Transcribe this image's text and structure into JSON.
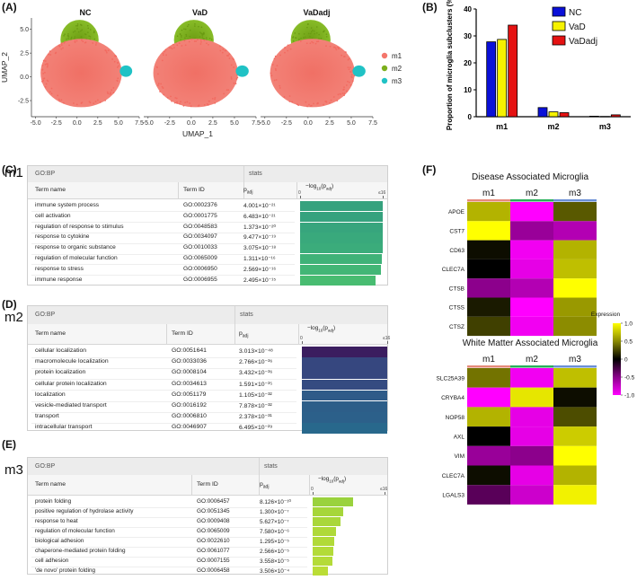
{
  "panels": {
    "A": "(A)",
    "B": "(B)",
    "C": "(C)",
    "D": "(D)",
    "E": "(E)",
    "F": "(F)"
  },
  "umap": {
    "titles": [
      "NC",
      "VaD",
      "VaDadj"
    ],
    "ylabel": "UMAP_2",
    "xlabel": "UMAP_1",
    "xticks": [
      "-5.0",
      "-2.5",
      "0.0",
      "2.5",
      "5.0",
      "7.5"
    ],
    "yticks": [
      "5.0",
      "2.5",
      "0.0",
      "-2.5"
    ],
    "legend": [
      {
        "label": "m1",
        "color": "#f4766b"
      },
      {
        "label": "m2",
        "color": "#7caf1d"
      },
      {
        "label": "m3",
        "color": "#20c2c5"
      }
    ]
  },
  "chart_data": {
    "type": "bar",
    "categories": [
      "m1",
      "m2",
      "m3"
    ],
    "series": [
      {
        "name": "NC",
        "color": "#0a10d8",
        "values": [
          27.8,
          3.4,
          0.2
        ]
      },
      {
        "name": "VaD",
        "color": "#f6f200",
        "values": [
          28.7,
          1.8,
          0.1
        ]
      },
      {
        "name": "VaDadj",
        "color": "#e51212",
        "values": [
          34.0,
          1.5,
          0.7
        ]
      }
    ],
    "ylabel": "Proportion of microglia subclusters (%)",
    "ylim": [
      0,
      40
    ],
    "yticks": [
      "0",
      "10",
      "20",
      "30",
      "40"
    ],
    "legend_position": "top-right",
    "grid": false
  },
  "gprofiler": [
    {
      "cluster": "m1",
      "source": "GO:BP",
      "stats_label": "stats",
      "col_term": "Term name",
      "col_id": "Term ID",
      "col_p": "p",
      "col_p_sub": "adj",
      "col_log": "−log",
      "col_log_sub": "10",
      "col_log_tail": "(p",
      "col_log_tail_sub": "adj",
      "col_log_end": ")",
      "axis_min": "0",
      "axis_max": "≤16",
      "axis_max_value": 16,
      "rows": [
        {
          "name": "immune system process",
          "id": "GO:0002376",
          "p": "4.001×10⁻²¹",
          "score": 16,
          "color": "#36a27e"
        },
        {
          "name": "cell activation",
          "id": "GO:0001775",
          "p": "6.483×10⁻²¹",
          "score": 16,
          "color": "#36a27e"
        },
        {
          "name": "regulation of response to stimulus",
          "id": "GO:0048583",
          "p": "1.373×10⁻²⁰",
          "score": 16,
          "color": "#37a57d"
        },
        {
          "name": "response to cytokine",
          "id": "GO:0034097",
          "p": "9.477×10⁻¹⁹",
          "score": 16,
          "color": "#39a97c"
        },
        {
          "name": "response to organic substance",
          "id": "GO:0010033",
          "p": "3.075×10⁻¹⁸",
          "score": 16,
          "color": "#3bac7b"
        },
        {
          "name": "regulation of molecular function",
          "id": "GO:0065009",
          "p": "1.311×10⁻¹⁶",
          "score": 15.88,
          "color": "#3fb278"
        },
        {
          "name": "response to stress",
          "id": "GO:0006950",
          "p": "2.569×10⁻¹⁶",
          "score": 15.59,
          "color": "#42b676"
        },
        {
          "name": "immune response",
          "id": "GO:0006955",
          "p": "2.495×10⁻¹⁵",
          "score": 14.6,
          "color": "#48bc71"
        }
      ]
    },
    {
      "cluster": "m2",
      "source": "GO:BP",
      "stats_label": "stats",
      "col_term": "Term name",
      "col_id": "Term ID",
      "col_p": "p",
      "col_p_sub": "adj",
      "col_log": "−log",
      "col_log_sub": "10",
      "col_log_tail": "(p",
      "col_log_tail_sub": "adj",
      "col_log_end": ")",
      "axis_min": "0",
      "axis_max": "≤16",
      "axis_max_value": 16,
      "rows": [
        {
          "name": "cellular localization",
          "id": "GO:0051641",
          "p": "3.013×10⁻⁴⁸",
          "score": 16,
          "color": "#3b1d5f"
        },
        {
          "name": "macromolecule localization",
          "id": "GO:0033036",
          "p": "2.766×10⁻³⁶",
          "score": 16,
          "color": "#36477f"
        },
        {
          "name": "protein localization",
          "id": "GO:0008104",
          "p": "3.432×10⁻³⁶",
          "score": 16,
          "color": "#36477f"
        },
        {
          "name": "cellular protein localization",
          "id": "GO:0034613",
          "p": "1.591×10⁻³⁵",
          "score": 16,
          "color": "#354b81"
        },
        {
          "name": "localization",
          "id": "GO:0051179",
          "p": "1.105×10⁻³²",
          "score": 16,
          "color": "#2f5b88"
        },
        {
          "name": "vesicle-mediated transport",
          "id": "GO:0016192",
          "p": "7.878×10⁻³²",
          "score": 16,
          "color": "#2d5e89"
        },
        {
          "name": "transport",
          "id": "GO:0006810",
          "p": "2.378×10⁻³¹",
          "score": 16,
          "color": "#2c608a"
        },
        {
          "name": "intracellular transport",
          "id": "GO:0046907",
          "p": "6.495×10⁻²⁹",
          "score": 16,
          "color": "#28688c"
        }
      ]
    },
    {
      "cluster": "m3",
      "source": "GO:BP",
      "stats_label": "stats",
      "col_term": "Term name",
      "col_id": "Term ID",
      "col_p": "p",
      "col_p_sub": "adj",
      "col_log": "−log",
      "col_log_sub": "10",
      "col_log_tail": "(p",
      "col_log_tail_sub": "adj",
      "col_log_end": ")",
      "axis_min": "0",
      "axis_max": "≤16",
      "axis_max_value": 16,
      "rows": [
        {
          "name": "protein folding",
          "id": "GO:0006457",
          "p": "8.126×10⁻¹⁰",
          "score": 9.09,
          "color": "#9ad23d"
        },
        {
          "name": "positive regulation of hydrolase activity",
          "id": "GO:0051345",
          "p": "1.300×10⁻⁷",
          "score": 6.89,
          "color": "#a6d63a"
        },
        {
          "name": "response to heat",
          "id": "GO:0009408",
          "p": "5.627×10⁻⁷",
          "score": 6.25,
          "color": "#a9d73a"
        },
        {
          "name": "regulation of molecular function",
          "id": "GO:0065009",
          "p": "7.580×10⁻⁶",
          "score": 5.12,
          "color": "#afd938"
        },
        {
          "name": "biological adhesion",
          "id": "GO:0022610",
          "p": "1.295×10⁻⁵",
          "score": 4.89,
          "color": "#b1da38"
        },
        {
          "name": "chaperone-mediated protein folding",
          "id": "GO:0061077",
          "p": "2.566×10⁻⁵",
          "score": 4.59,
          "color": "#b3db38"
        },
        {
          "name": "cell adhesion",
          "id": "GO:0007155",
          "p": "3.558×10⁻⁵",
          "score": 4.45,
          "color": "#b4db38"
        },
        {
          "name": "'de novo' protein folding",
          "id": "GO:0006458",
          "p": "3.506×10⁻⁴",
          "score": 3.46,
          "color": "#badd36"
        }
      ]
    }
  ],
  "heatmaps": {
    "columns": [
      "m1",
      "m2",
      "m3"
    ],
    "column_colors": [
      "#e58a7a",
      "#27b05a",
      "#6b8fd6"
    ],
    "colorbar_title": "Expression",
    "colorbar_ticks": [
      "1.0",
      "0.5",
      "0",
      "-0.5",
      "-1.0"
    ],
    "colorbar_range": [
      -1.0,
      1.0
    ],
    "colorscale": "magenta-black-yellow",
    "groups": [
      {
        "title": "Disease Associated Microglia",
        "genes": [
          "APOE",
          "CST7",
          "CD63",
          "CLEC7A",
          "CTSB",
          "CTSS",
          "CTSZ"
        ],
        "values": [
          [
            0.7,
            -1.0,
            0.35
          ],
          [
            1.1,
            -0.6,
            -0.7
          ],
          [
            0.05,
            -0.95,
            0.7
          ],
          [
            0.0,
            -0.9,
            0.75
          ],
          [
            -0.55,
            -0.7,
            1.0
          ],
          [
            0.1,
            -1.0,
            0.6
          ],
          [
            0.25,
            -0.95,
            0.55
          ]
        ]
      },
      {
        "title": "White Matter Associated Microglia",
        "genes": [
          "SLC25A39",
          "CRYBA4",
          "NOP58",
          "AXL",
          "VIM",
          "CLEC7A",
          "LGALS3"
        ],
        "values": [
          [
            0.45,
            -0.95,
            0.75
          ],
          [
            -1.0,
            0.9,
            0.05
          ],
          [
            0.7,
            -0.9,
            0.3
          ],
          [
            0.0,
            -0.9,
            0.8
          ],
          [
            -0.6,
            -0.55,
            1.0
          ],
          [
            0.05,
            -0.9,
            0.7
          ],
          [
            -0.35,
            -0.8,
            0.95
          ]
        ]
      }
    ]
  }
}
